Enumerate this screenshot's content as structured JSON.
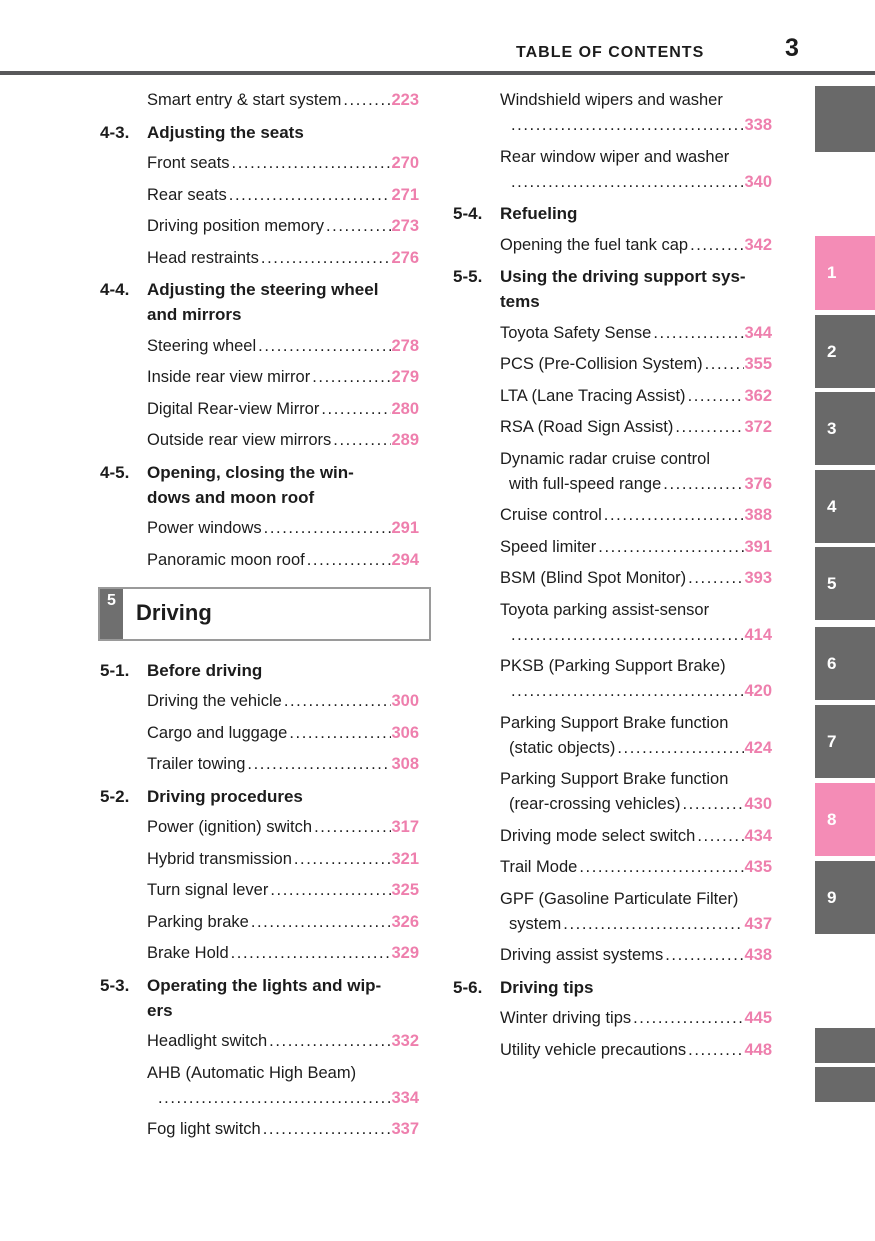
{
  "header": {
    "title": "TABLE OF CONTENTS",
    "page_number": "3"
  },
  "colors": {
    "accent_pink": "#ee7fad",
    "tab_pink": "#f48cb6",
    "tab_gray": "#696969",
    "rule_gray": "#58585a",
    "chapter_square_gray": "#6f6f6f"
  },
  "toc": {
    "left": [
      {
        "type": "entry",
        "label": "Smart entry & start system",
        "page": "223"
      },
      {
        "type": "section",
        "num": "4-3.",
        "title": "Adjusting the seats"
      },
      {
        "type": "entry",
        "label": "Front seats",
        "page": "270"
      },
      {
        "type": "entry",
        "label": "Rear seats",
        "page": "271"
      },
      {
        "type": "entry",
        "label": "Driving position memory",
        "page": "273"
      },
      {
        "type": "entry",
        "label": "Head restraints",
        "page": "276"
      },
      {
        "type": "section",
        "num": "4-4.",
        "title": "Adjusting the steering wheel\nand mirrors"
      },
      {
        "type": "entry",
        "label": "Steering wheel",
        "page": "278"
      },
      {
        "type": "entry",
        "label": "Inside rear view mirror",
        "page": "279"
      },
      {
        "type": "entry",
        "label": "Digital Rear-view Mirror",
        "page": "280"
      },
      {
        "type": "entry",
        "label": "Outside rear view mirrors",
        "page": "289"
      },
      {
        "type": "section",
        "num": "4-5.",
        "title": "Opening, closing the win-\ndows and moon roof"
      },
      {
        "type": "entry",
        "label": "Power windows",
        "page": "291"
      },
      {
        "type": "entry",
        "label": "Panoramic moon roof",
        "page": "294"
      },
      {
        "type": "chapter",
        "num": "5",
        "title": "Driving"
      },
      {
        "type": "section",
        "num": "5-1.",
        "title": "Before driving"
      },
      {
        "type": "entry",
        "label": "Driving the vehicle",
        "page": "300"
      },
      {
        "type": "entry",
        "label": "Cargo and luggage",
        "page": "306"
      },
      {
        "type": "entry",
        "label": "Trailer towing",
        "page": "308"
      },
      {
        "type": "section",
        "num": "5-2.",
        "title": "Driving procedures"
      },
      {
        "type": "entry",
        "label": "Power (ignition) switch",
        "page": "317"
      },
      {
        "type": "entry",
        "label": "Hybrid transmission",
        "page": "321"
      },
      {
        "type": "entry",
        "label": "Turn signal lever",
        "page": "325"
      },
      {
        "type": "entry",
        "label": "Parking brake",
        "page": "326"
      },
      {
        "type": "entry",
        "label": "Brake Hold",
        "page": "329"
      },
      {
        "type": "section",
        "num": "5-3.",
        "title": "Operating the lights and wip-\ners"
      },
      {
        "type": "entry",
        "label": "Headlight switch",
        "page": "332"
      },
      {
        "type": "entry2",
        "label": "AHB (Automatic High Beam)",
        "page": "334"
      },
      {
        "type": "entry",
        "label": "Fog light switch",
        "page": "337"
      }
    ],
    "right": [
      {
        "type": "entry2",
        "label": "Windshield wipers and washer",
        "page": "338"
      },
      {
        "type": "entry2",
        "label": "Rear window wiper and washer",
        "page": "340"
      },
      {
        "type": "section",
        "num": "5-4.",
        "title": "Refueling"
      },
      {
        "type": "entry",
        "label": "Opening the fuel tank cap",
        "page": "342"
      },
      {
        "type": "section",
        "num": "5-5.",
        "title": "Using the driving support sys-\ntems"
      },
      {
        "type": "entry",
        "label": "Toyota Safety Sense",
        "page": "344"
      },
      {
        "type": "entry",
        "label": "PCS (Pre-Collision System)",
        "page": "355"
      },
      {
        "type": "entry",
        "label": "LTA (Lane Tracing Assist)",
        "page": "362"
      },
      {
        "type": "entry",
        "label": "RSA (Road Sign Assist)",
        "page": "372"
      },
      {
        "type": "entry2",
        "label": "Dynamic radar cruise control",
        "label2": "with full-speed range",
        "page": "376"
      },
      {
        "type": "entry",
        "label": "Cruise control",
        "page": "388"
      },
      {
        "type": "entry",
        "label": "Speed limiter",
        "page": "391"
      },
      {
        "type": "entry",
        "label": "BSM (Blind Spot Monitor)",
        "page": "393"
      },
      {
        "type": "entry2",
        "label": "Toyota parking assist-sensor",
        "page": "414"
      },
      {
        "type": "entry2",
        "label": "PKSB (Parking Support Brake)",
        "page": "420"
      },
      {
        "type": "entry2",
        "label": "Parking Support Brake function",
        "label2": "(static objects)",
        "page": "424"
      },
      {
        "type": "entry2",
        "label": "Parking Support Brake function",
        "label2": "(rear-crossing vehicles)",
        "page": "430"
      },
      {
        "type": "entry",
        "label": "Driving mode select switch",
        "page": "434"
      },
      {
        "type": "entry",
        "label": "Trail Mode",
        "page": "435"
      },
      {
        "type": "entry2",
        "label": "GPF (Gasoline Particulate Filter)",
        "label2": "system",
        "page": "437"
      },
      {
        "type": "entry",
        "label": "Driving assist systems",
        "page": "438"
      },
      {
        "type": "section",
        "num": "5-6.",
        "title": "Driving tips"
      },
      {
        "type": "entry",
        "label": "Winter driving tips",
        "page": "445"
      },
      {
        "type": "entry",
        "label": "Utility vehicle precautions",
        "page": "448"
      }
    ]
  },
  "side_tabs": [
    {
      "label": "",
      "active": false
    },
    {
      "label": "1",
      "active": true
    },
    {
      "label": "2",
      "active": false
    },
    {
      "label": "3",
      "active": false
    },
    {
      "label": "4",
      "active": false
    },
    {
      "label": "5",
      "active": false
    },
    {
      "label": "6",
      "active": false
    },
    {
      "label": "7",
      "active": false
    },
    {
      "label": "8",
      "active": true
    },
    {
      "label": "9",
      "active": false
    },
    {
      "label": "",
      "active": false
    },
    {
      "label": "",
      "active": false
    }
  ]
}
